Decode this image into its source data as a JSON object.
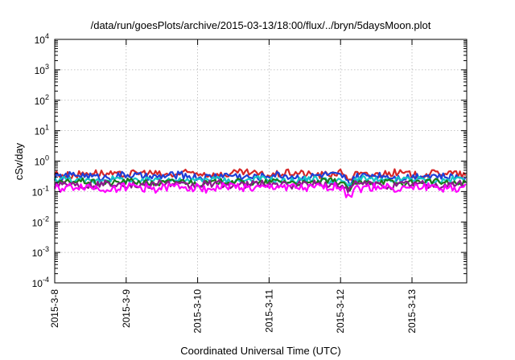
{
  "chart_data": {
    "type": "line",
    "title": "/data/run/goesPlots/archive/2015-03-13/18:00/flux/../bryn/5daysMoon.plot",
    "xlabel": "Coordinated Universal Time (UTC)",
    "ylabel": "cSv/day",
    "y_scale": "log",
    "ylim": [
      0.0001,
      10000
    ],
    "y_ticks": [
      {
        "value": 0.0001,
        "base": "10",
        "exp": "-4"
      },
      {
        "value": 0.001,
        "base": "10",
        "exp": "-3"
      },
      {
        "value": 0.01,
        "base": "10",
        "exp": "-2"
      },
      {
        "value": 0.1,
        "base": "10",
        "exp": "-1"
      },
      {
        "value": 1,
        "base": "10",
        "exp": "0"
      },
      {
        "value": 10,
        "base": "10",
        "exp": "1"
      },
      {
        "value": 100,
        "base": "10",
        "exp": "2"
      },
      {
        "value": 1000,
        "base": "10",
        "exp": "3"
      },
      {
        "value": 10000,
        "base": "10",
        "exp": "4"
      }
    ],
    "x_ticks": [
      "2015-3-8",
      "2015-3-9",
      "2015-3-10",
      "2015-3-11",
      "2015-3-12",
      "2015-3-13"
    ],
    "xlim_days": [
      0,
      5.75
    ],
    "grid": true,
    "series": [
      {
        "color": "#d62728",
        "level": 0.38,
        "amp": 0.12,
        "seed": 3
      },
      {
        "color": "#1f3fd6",
        "level": 0.32,
        "amp": 0.12,
        "seed": 5
      },
      {
        "color": "#17c7c7",
        "level": 0.24,
        "amp": 0.1,
        "seed": 7
      },
      {
        "color": "#1a7a1a",
        "level": 0.2,
        "amp": 0.1,
        "seed": 11
      },
      {
        "color": "#8b1a8b",
        "level": 0.17,
        "amp": 0.12,
        "seed": 13
      },
      {
        "color": "#ff00ff",
        "level": 0.135,
        "amp": 0.14,
        "seed": 17
      }
    ]
  }
}
